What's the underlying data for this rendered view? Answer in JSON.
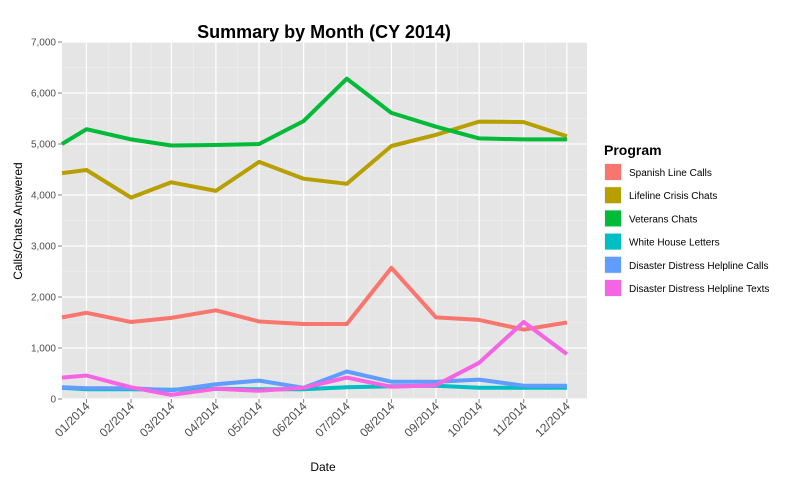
{
  "chart_data": {
    "type": "line",
    "title": "Summary by Month (CY 2014)",
    "xlabel": "Date",
    "ylabel": "Calls/Chats Answered",
    "ylim": [
      0,
      7000
    ],
    "yticks": [
      "0",
      "1,000",
      "2,000",
      "3,000",
      "4,000",
      "5,000",
      "6,000",
      "7,000"
    ],
    "ytick_values": [
      0,
      1000,
      2000,
      3000,
      4000,
      5000,
      6000,
      7000
    ],
    "x": [
      "2013-12-15",
      "2014-01-01",
      "2014-02-01",
      "2014-03-01",
      "2014-04-01",
      "2014-05-01",
      "2014-06-01",
      "2014-07-01",
      "2014-08-01",
      "2014-09-01",
      "2014-10-01",
      "2014-11-01",
      "2014-12-01"
    ],
    "xlim": [
      "2013-12-15",
      "2014-12-15"
    ],
    "xticks": [
      "01/2014",
      "02/2014",
      "03/2014",
      "04/2014",
      "05/2014",
      "06/2014",
      "07/2014",
      "08/2014",
      "09/2014",
      "10/2014",
      "11/2014",
      "12/2014"
    ],
    "xtick_dates": [
      "2014-01-01",
      "2014-02-01",
      "2014-03-01",
      "2014-04-01",
      "2014-05-01",
      "2014-06-01",
      "2014-07-01",
      "2014-08-01",
      "2014-09-01",
      "2014-10-01",
      "2014-11-01",
      "2014-12-01"
    ],
    "grid": true,
    "background": "#e5e5e5",
    "legend_title": "Program",
    "legend_position": "right",
    "series": [
      {
        "name": "Spanish Line Calls",
        "color": "#F8766D",
        "values": [
          1600,
          1690,
          1510,
          1590,
          1740,
          1520,
          1470,
          1470,
          2570,
          1600,
          1550,
          1360,
          1500
        ]
      },
      {
        "name": "Lifeline Crisis Chats",
        "color": "#B79F00",
        "values": [
          4430,
          4490,
          3950,
          4250,
          4080,
          4650,
          4320,
          4220,
          4960,
          5180,
          5440,
          5430,
          5150
        ]
      },
      {
        "name": "Veterans Chats",
        "color": "#00BA38",
        "values": [
          5000,
          5290,
          5090,
          4970,
          4980,
          5000,
          5450,
          6280,
          5610,
          5340,
          5110,
          5090,
          5090
        ]
      },
      {
        "name": "White House Letters",
        "color": "#00BFC4",
        "values": [
          220,
          190,
          190,
          180,
          200,
          190,
          190,
          230,
          250,
          260,
          220,
          220,
          220
        ]
      },
      {
        "name": "Disaster Distress Helpline Calls",
        "color": "#619CFF",
        "values": [
          230,
          210,
          210,
          170,
          290,
          360,
          220,
          540,
          340,
          340,
          380,
          260,
          260
        ]
      },
      {
        "name": "Disaster Distress Helpline Texts",
        "color": "#F564E3",
        "values": [
          420,
          460,
          230,
          80,
          200,
          160,
          220,
          420,
          240,
          270,
          710,
          1510,
          880
        ]
      }
    ]
  }
}
